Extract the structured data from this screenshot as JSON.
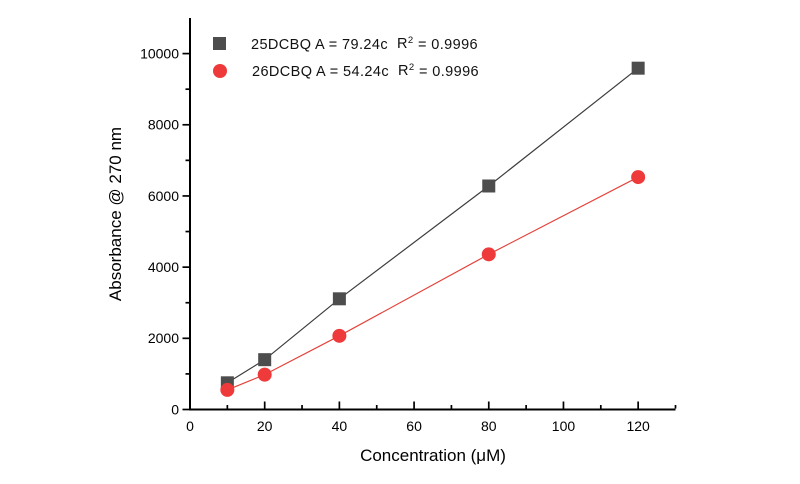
{
  "chart_data": {
    "type": "scatter",
    "title": "",
    "xlabel": "Concentration (μM)",
    "ylabel": "Absorbance @ 270 nm",
    "xlim": [
      0,
      130
    ],
    "ylim": [
      0,
      11000
    ],
    "x_major_ticks": [
      0,
      20,
      40,
      60,
      80,
      100,
      120
    ],
    "x_minor_ticks": [
      10,
      30,
      50,
      70,
      90,
      110,
      130
    ],
    "y_major_ticks": [
      0,
      2000,
      4000,
      6000,
      8000,
      10000
    ],
    "y_minor_ticks": [
      1000,
      3000,
      5000,
      7000,
      9000
    ],
    "grid": false,
    "background_color": "#ffffff",
    "axis_color": "#000000",
    "legend_position": "top-inside",
    "series": [
      {
        "name": "25DCBQ",
        "marker": "square",
        "marker_color": "#4d4d4d",
        "line_color": "#3d3d3d",
        "fit_slope": 79.24,
        "fit_equation": "A = 79.24c",
        "r_squared": 0.9996,
        "x": [
          10,
          20,
          40,
          80,
          120
        ],
        "y": [
          750,
          1400,
          3110,
          6280,
          9590
        ]
      },
      {
        "name": "26DCBQ",
        "marker": "circle",
        "marker_color": "#ee3a3a",
        "line_color": "#e4423a",
        "fit_slope": 54.24,
        "fit_equation": "A = 54.24c",
        "r_squared": 0.9996,
        "x": [
          10,
          20,
          40,
          80,
          120
        ],
        "y": [
          550,
          980,
          2070,
          4360,
          6530
        ]
      }
    ]
  },
  "legend": {
    "entries": [
      {
        "text": "25DCBQ A = 79.24c",
        "r": "R",
        "sup": "2",
        "rest": " = 0.9996",
        "marker": "square"
      },
      {
        "text": "26DCBQ A = 54.24c",
        "r": "R",
        "sup": "2",
        "rest": " = 0.9996",
        "marker": "circle"
      }
    ]
  }
}
